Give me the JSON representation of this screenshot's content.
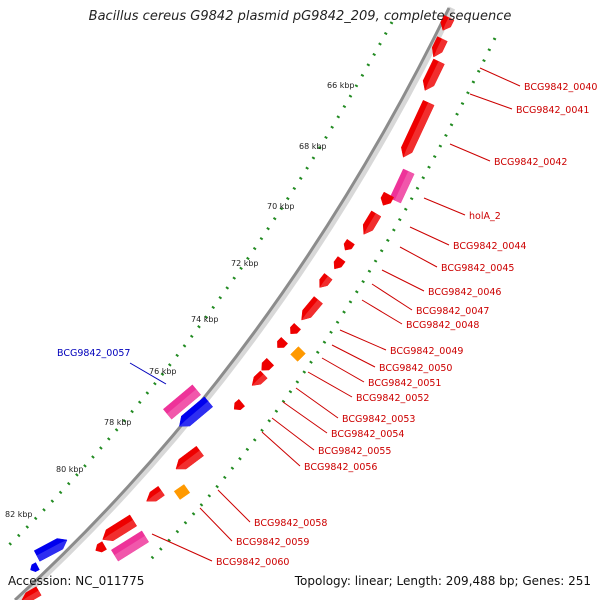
{
  "title": "Bacillus cereus G9842 plasmid pG9842_209, complete sequence",
  "accession": "Accession: NC_011775",
  "topology": "Topology: linear; Length: 209,488 bp; Genes: 251",
  "colors": {
    "forward_gene": "#ee0000",
    "reverse_gene": "#0000ee",
    "named_gene": "#ee3399",
    "alt_gene": "#ff9900",
    "backbone": "#8c8c8c",
    "tick_dots": "#228b22",
    "label_red": "#cc0000",
    "label_blue": "#0000bb"
  },
  "ticks": [
    "66 kbp",
    "68 kbp",
    "70 kbp",
    "72 kbp",
    "74 kbp",
    "76 kbp",
    "78 kbp",
    "80 kbp",
    "82 kbp"
  ],
  "labels": [
    {
      "text": "BCG9842_0040",
      "color": "red"
    },
    {
      "text": "BCG9842_0041",
      "color": "red"
    },
    {
      "text": "BCG9842_0042",
      "color": "red"
    },
    {
      "text": "holA_2",
      "color": "red"
    },
    {
      "text": "BCG9842_0044",
      "color": "red"
    },
    {
      "text": "BCG9842_0045",
      "color": "red"
    },
    {
      "text": "BCG9842_0046",
      "color": "red"
    },
    {
      "text": "BCG9842_0047",
      "color": "red"
    },
    {
      "text": "BCG9842_0048",
      "color": "red"
    },
    {
      "text": "BCG9842_0049",
      "color": "red"
    },
    {
      "text": "BCG9842_0050",
      "color": "red"
    },
    {
      "text": "BCG9842_0051",
      "color": "red"
    },
    {
      "text": "BCG9842_0052",
      "color": "red"
    },
    {
      "text": "BCG9842_0053",
      "color": "red"
    },
    {
      "text": "BCG9842_0054",
      "color": "red"
    },
    {
      "text": "BCG9842_0055",
      "color": "red"
    },
    {
      "text": "BCG9842_0056",
      "color": "red"
    },
    {
      "text": "BCG9842_0057",
      "color": "blue"
    },
    {
      "text": "BCG9842_0058",
      "color": "red"
    },
    {
      "text": "BCG9842_0059",
      "color": "red"
    },
    {
      "text": "BCG9842_0060",
      "color": "red"
    }
  ]
}
